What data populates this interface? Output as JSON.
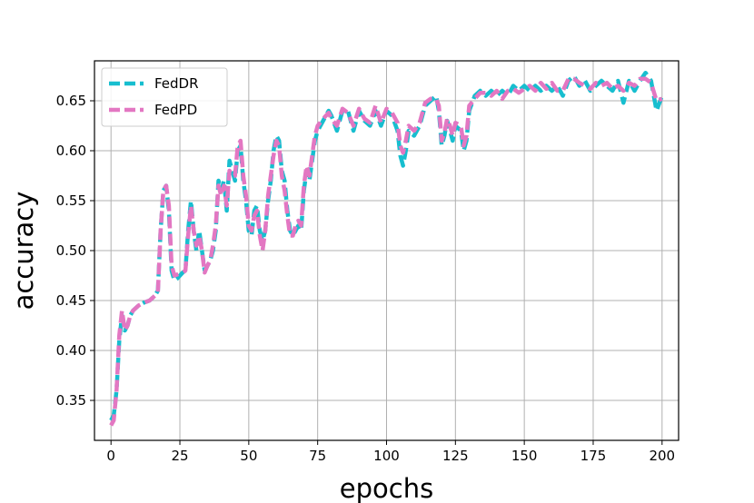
{
  "chart_data": {
    "type": "line",
    "title": "",
    "xlabel": "epochs",
    "ylabel": "accuracy",
    "xlim": [
      -6,
      206
    ],
    "ylim": [
      0.31,
      0.69
    ],
    "xticks": [
      0,
      25,
      50,
      75,
      100,
      125,
      150,
      175,
      200
    ],
    "yticks": [
      0.35,
      0.4,
      0.45,
      0.5,
      0.55,
      0.6,
      0.65
    ],
    "ytick_labels": [
      "0.35",
      "0.40",
      "0.45",
      "0.50",
      "0.55",
      "0.60",
      "0.65"
    ],
    "grid": true,
    "legend_position": "upper-left",
    "series": [
      {
        "name": "FedDR",
        "color": "#17becf",
        "style": "dashed",
        "points": [
          [
            0,
            0.33
          ],
          [
            1,
            0.335
          ],
          [
            2,
            0.36
          ],
          [
            3,
            0.41
          ],
          [
            4,
            0.435
          ],
          [
            5,
            0.42
          ],
          [
            6,
            0.425
          ],
          [
            7,
            0.435
          ],
          [
            8,
            0.44
          ],
          [
            10,
            0.445
          ],
          [
            12,
            0.448
          ],
          [
            14,
            0.45
          ],
          [
            16,
            0.455
          ],
          [
            17,
            0.46
          ],
          [
            18,
            0.52
          ],
          [
            19,
            0.56
          ],
          [
            20,
            0.565
          ],
          [
            21,
            0.54
          ],
          [
            22,
            0.48
          ],
          [
            23,
            0.47
          ],
          [
            24,
            0.472
          ],
          [
            26,
            0.478
          ],
          [
            27,
            0.48
          ],
          [
            28,
            0.52
          ],
          [
            29,
            0.55
          ],
          [
            30,
            0.52
          ],
          [
            31,
            0.5
          ],
          [
            32,
            0.52
          ],
          [
            33,
            0.5
          ],
          [
            34,
            0.48
          ],
          [
            35,
            0.485
          ],
          [
            36,
            0.49
          ],
          [
            37,
            0.5
          ],
          [
            38,
            0.52
          ],
          [
            39,
            0.57
          ],
          [
            40,
            0.56
          ],
          [
            41,
            0.57
          ],
          [
            42,
            0.54
          ],
          [
            43,
            0.59
          ],
          [
            44,
            0.58
          ],
          [
            45,
            0.57
          ],
          [
            46,
            0.6
          ],
          [
            47,
            0.605
          ],
          [
            48,
            0.57
          ],
          [
            49,
            0.55
          ],
          [
            50,
            0.52
          ],
          [
            51,
            0.515
          ],
          [
            52,
            0.54
          ],
          [
            53,
            0.545
          ],
          [
            54,
            0.52
          ],
          [
            55,
            0.51
          ],
          [
            56,
            0.52
          ],
          [
            57,
            0.55
          ],
          [
            58,
            0.57
          ],
          [
            59,
            0.6
          ],
          [
            60,
            0.615
          ],
          [
            61,
            0.61
          ],
          [
            62,
            0.58
          ],
          [
            63,
            0.57
          ],
          [
            64,
            0.54
          ],
          [
            65,
            0.52
          ],
          [
            66,
            0.515
          ],
          [
            67,
            0.52
          ],
          [
            68,
            0.525
          ],
          [
            69,
            0.52
          ],
          [
            70,
            0.56
          ],
          [
            71,
            0.58
          ],
          [
            72,
            0.57
          ],
          [
            73,
            0.59
          ],
          [
            74,
            0.61
          ],
          [
            75,
            0.62
          ],
          [
            77,
            0.63
          ],
          [
            79,
            0.64
          ],
          [
            80,
            0.635
          ],
          [
            82,
            0.62
          ],
          [
            84,
            0.64
          ],
          [
            86,
            0.64
          ],
          [
            88,
            0.62
          ],
          [
            90,
            0.64
          ],
          [
            92,
            0.63
          ],
          [
            94,
            0.625
          ],
          [
            96,
            0.64
          ],
          [
            98,
            0.625
          ],
          [
            100,
            0.64
          ],
          [
            102,
            0.635
          ],
          [
            104,
            0.62
          ],
          [
            105,
            0.595
          ],
          [
            106,
            0.585
          ],
          [
            107,
            0.6
          ],
          [
            108,
            0.62
          ],
          [
            110,
            0.615
          ],
          [
            112,
            0.625
          ],
          [
            114,
            0.645
          ],
          [
            116,
            0.65
          ],
          [
            118,
            0.655
          ],
          [
            119,
            0.64
          ],
          [
            120,
            0.605
          ],
          [
            121,
            0.615
          ],
          [
            122,
            0.63
          ],
          [
            123,
            0.62
          ],
          [
            124,
            0.61
          ],
          [
            125,
            0.625
          ],
          [
            127,
            0.62
          ],
          [
            128,
            0.6
          ],
          [
            129,
            0.61
          ],
          [
            130,
            0.64
          ],
          [
            132,
            0.655
          ],
          [
            134,
            0.66
          ],
          [
            136,
            0.655
          ],
          [
            138,
            0.66
          ],
          [
            140,
            0.655
          ],
          [
            142,
            0.66
          ],
          [
            144,
            0.655
          ],
          [
            146,
            0.665
          ],
          [
            148,
            0.66
          ],
          [
            150,
            0.665
          ],
          [
            152,
            0.66
          ],
          [
            154,
            0.665
          ],
          [
            156,
            0.66
          ],
          [
            158,
            0.665
          ],
          [
            160,
            0.66
          ],
          [
            162,
            0.665
          ],
          [
            164,
            0.655
          ],
          [
            166,
            0.67
          ],
          [
            168,
            0.675
          ],
          [
            170,
            0.665
          ],
          [
            172,
            0.67
          ],
          [
            174,
            0.66
          ],
          [
            176,
            0.665
          ],
          [
            178,
            0.67
          ],
          [
            180,
            0.665
          ],
          [
            182,
            0.66
          ],
          [
            184,
            0.67
          ],
          [
            186,
            0.648
          ],
          [
            188,
            0.67
          ],
          [
            190,
            0.66
          ],
          [
            192,
            0.67
          ],
          [
            194,
            0.678
          ],
          [
            196,
            0.67
          ],
          [
            198,
            0.64
          ],
          [
            200,
            0.655
          ]
        ]
      },
      {
        "name": "FedPD",
        "color": "#e377c2",
        "style": "dashed",
        "points": [
          [
            0,
            0.325
          ],
          [
            1,
            0.33
          ],
          [
            2,
            0.36
          ],
          [
            3,
            0.415
          ],
          [
            4,
            0.44
          ],
          [
            5,
            0.42
          ],
          [
            6,
            0.425
          ],
          [
            7,
            0.435
          ],
          [
            8,
            0.44
          ],
          [
            10,
            0.445
          ],
          [
            12,
            0.448
          ],
          [
            14,
            0.45
          ],
          [
            16,
            0.455
          ],
          [
            17,
            0.458
          ],
          [
            18,
            0.52
          ],
          [
            19,
            0.56
          ],
          [
            20,
            0.565
          ],
          [
            21,
            0.545
          ],
          [
            22,
            0.485
          ],
          [
            23,
            0.475
          ],
          [
            24,
            0.476
          ],
          [
            26,
            0.478
          ],
          [
            27,
            0.48
          ],
          [
            28,
            0.515
          ],
          [
            29,
            0.545
          ],
          [
            30,
            0.52
          ],
          [
            31,
            0.505
          ],
          [
            32,
            0.515
          ],
          [
            33,
            0.5
          ],
          [
            34,
            0.478
          ],
          [
            35,
            0.485
          ],
          [
            36,
            0.49
          ],
          [
            37,
            0.505
          ],
          [
            38,
            0.525
          ],
          [
            39,
            0.565
          ],
          [
            40,
            0.555
          ],
          [
            41,
            0.565
          ],
          [
            42,
            0.545
          ],
          [
            43,
            0.58
          ],
          [
            44,
            0.575
          ],
          [
            45,
            0.575
          ],
          [
            46,
            0.605
          ],
          [
            47,
            0.61
          ],
          [
            48,
            0.575
          ],
          [
            49,
            0.555
          ],
          [
            50,
            0.525
          ],
          [
            51,
            0.52
          ],
          [
            52,
            0.535
          ],
          [
            53,
            0.54
          ],
          [
            54,
            0.515
          ],
          [
            55,
            0.5
          ],
          [
            56,
            0.52
          ],
          [
            57,
            0.555
          ],
          [
            58,
            0.575
          ],
          [
            59,
            0.595
          ],
          [
            60,
            0.61
          ],
          [
            61,
            0.605
          ],
          [
            62,
            0.575
          ],
          [
            63,
            0.56
          ],
          [
            64,
            0.535
          ],
          [
            65,
            0.515
          ],
          [
            66,
            0.515
          ],
          [
            67,
            0.525
          ],
          [
            68,
            0.53
          ],
          [
            69,
            0.525
          ],
          [
            70,
            0.565
          ],
          [
            71,
            0.585
          ],
          [
            72,
            0.575
          ],
          [
            73,
            0.595
          ],
          [
            74,
            0.615
          ],
          [
            75,
            0.625
          ],
          [
            77,
            0.632
          ],
          [
            79,
            0.638
          ],
          [
            80,
            0.632
          ],
          [
            82,
            0.625
          ],
          [
            84,
            0.642
          ],
          [
            86,
            0.638
          ],
          [
            88,
            0.625
          ],
          [
            90,
            0.642
          ],
          [
            92,
            0.632
          ],
          [
            94,
            0.628
          ],
          [
            96,
            0.645
          ],
          [
            98,
            0.628
          ],
          [
            100,
            0.642
          ],
          [
            102,
            0.638
          ],
          [
            104,
            0.628
          ],
          [
            105,
            0.605
          ],
          [
            106,
            0.598
          ],
          [
            107,
            0.61
          ],
          [
            108,
            0.625
          ],
          [
            110,
            0.62
          ],
          [
            112,
            0.628
          ],
          [
            114,
            0.648
          ],
          [
            116,
            0.652
          ],
          [
            118,
            0.652
          ],
          [
            119,
            0.645
          ],
          [
            120,
            0.61
          ],
          [
            121,
            0.618
          ],
          [
            122,
            0.632
          ],
          [
            123,
            0.625
          ],
          [
            124,
            0.615
          ],
          [
            125,
            0.628
          ],
          [
            127,
            0.625
          ],
          [
            128,
            0.605
          ],
          [
            129,
            0.615
          ],
          [
            130,
            0.645
          ],
          [
            132,
            0.652
          ],
          [
            134,
            0.658
          ],
          [
            136,
            0.658
          ],
          [
            138,
            0.655
          ],
          [
            140,
            0.66
          ],
          [
            142,
            0.652
          ],
          [
            144,
            0.66
          ],
          [
            146,
            0.662
          ],
          [
            148,
            0.658
          ],
          [
            150,
            0.662
          ],
          [
            152,
            0.665
          ],
          [
            154,
            0.66
          ],
          [
            156,
            0.668
          ],
          [
            158,
            0.662
          ],
          [
            160,
            0.668
          ],
          [
            162,
            0.66
          ],
          [
            164,
            0.66
          ],
          [
            166,
            0.672
          ],
          [
            168,
            0.672
          ],
          [
            170,
            0.668
          ],
          [
            172,
            0.665
          ],
          [
            174,
            0.662
          ],
          [
            176,
            0.668
          ],
          [
            178,
            0.665
          ],
          [
            180,
            0.668
          ],
          [
            182,
            0.662
          ],
          [
            184,
            0.665
          ],
          [
            186,
            0.66
          ],
          [
            188,
            0.668
          ],
          [
            190,
            0.665
          ],
          [
            192,
            0.672
          ],
          [
            194,
            0.672
          ],
          [
            196,
            0.668
          ],
          [
            198,
            0.65
          ],
          [
            200,
            0.652
          ]
        ]
      }
    ]
  }
}
